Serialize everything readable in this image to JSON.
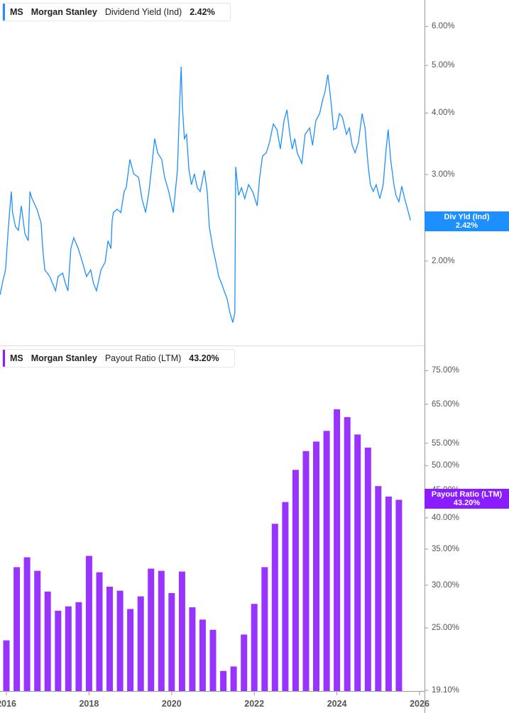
{
  "colors": {
    "yield_line": "#1e8fff",
    "payout_bar": "#9933ff",
    "payout_tag": "#8a1cff",
    "axis": "#999999"
  },
  "top_legend": {
    "ticker": "MS",
    "company": "Morgan Stanley",
    "metric": "Dividend Yield (Ind)",
    "value": "2.42%"
  },
  "bottom_legend": {
    "ticker": "MS",
    "company": "Morgan Stanley",
    "metric": "Payout Ratio (LTM)",
    "value": "43.20%"
  },
  "top_tag": {
    "label": "Div Yld (Ind)",
    "value": "2.42%"
  },
  "bottom_tag": {
    "label": "Payout Ratio (LTM)",
    "value": "43.20%"
  },
  "x_ticks": [
    "2016",
    "2018",
    "2020",
    "2022",
    "2024",
    "2026"
  ],
  "chart_data": [
    {
      "type": "line",
      "series": [
        {
          "name": "Dividend Yield (Ind)",
          "points": [
            [
              2015.85,
              1.71
            ],
            [
              2015.9,
              1.8
            ],
            [
              2015.98,
              1.92
            ],
            [
              2016.05,
              2.35
            ],
            [
              2016.09,
              2.59
            ],
            [
              2016.12,
              2.77
            ],
            [
              2016.15,
              2.51
            ],
            [
              2016.22,
              2.35
            ],
            [
              2016.29,
              2.31
            ],
            [
              2016.36,
              2.59
            ],
            [
              2016.45,
              2.27
            ],
            [
              2016.53,
              2.2
            ],
            [
              2016.57,
              2.77
            ],
            [
              2016.62,
              2.68
            ],
            [
              2016.74,
              2.55
            ],
            [
              2016.84,
              2.39
            ],
            [
              2016.88,
              2.12
            ],
            [
              2016.93,
              1.92
            ],
            [
              2017.05,
              1.86
            ],
            [
              2017.19,
              1.74
            ],
            [
              2017.25,
              1.86
            ],
            [
              2017.36,
              1.89
            ],
            [
              2017.43,
              1.8
            ],
            [
              2017.49,
              1.74
            ],
            [
              2017.56,
              2.12
            ],
            [
              2017.63,
              2.23
            ],
            [
              2017.74,
              2.12
            ],
            [
              2017.84,
              1.99
            ],
            [
              2017.94,
              1.86
            ],
            [
              2018.04,
              1.92
            ],
            [
              2018.11,
              1.8
            ],
            [
              2018.18,
              1.74
            ],
            [
              2018.29,
              1.92
            ],
            [
              2018.39,
              1.99
            ],
            [
              2018.46,
              2.2
            ],
            [
              2018.53,
              2.12
            ],
            [
              2018.56,
              2.42
            ],
            [
              2018.59,
              2.51
            ],
            [
              2018.68,
              2.55
            ],
            [
              2018.77,
              2.51
            ],
            [
              2018.85,
              2.77
            ],
            [
              2018.9,
              2.82
            ],
            [
              2018.99,
              3.22
            ],
            [
              2019.08,
              3.01
            ],
            [
              2019.2,
              2.96
            ],
            [
              2019.28,
              2.68
            ],
            [
              2019.37,
              2.51
            ],
            [
              2019.45,
              2.77
            ],
            [
              2019.52,
              3.13
            ],
            [
              2019.59,
              3.55
            ],
            [
              2019.66,
              3.32
            ],
            [
              2019.76,
              3.22
            ],
            [
              2019.83,
              2.96
            ],
            [
              2019.93,
              2.77
            ],
            [
              2020.04,
              2.51
            ],
            [
              2020.09,
              2.77
            ],
            [
              2020.14,
              3.06
            ],
            [
              2020.19,
              4.12
            ],
            [
              2020.23,
              4.97
            ],
            [
              2020.26,
              4.12
            ],
            [
              2020.31,
              3.55
            ],
            [
              2020.36,
              3.62
            ],
            [
              2020.42,
              3.06
            ],
            [
              2020.48,
              2.86
            ],
            [
              2020.55,
              3.01
            ],
            [
              2020.62,
              2.82
            ],
            [
              2020.69,
              2.77
            ],
            [
              2020.74,
              2.91
            ],
            [
              2020.79,
              3.06
            ],
            [
              2020.86,
              2.77
            ],
            [
              2020.91,
              2.35
            ],
            [
              2021.0,
              2.12
            ],
            [
              2021.07,
              1.99
            ],
            [
              2021.14,
              1.86
            ],
            [
              2021.21,
              1.8
            ],
            [
              2021.27,
              1.74
            ],
            [
              2021.34,
              1.68
            ],
            [
              2021.41,
              1.57
            ],
            [
              2021.48,
              1.5
            ],
            [
              2021.53,
              1.57
            ],
            [
              2021.55,
              3.11
            ],
            [
              2021.62,
              2.72
            ],
            [
              2021.69,
              2.82
            ],
            [
              2021.77,
              2.68
            ],
            [
              2021.86,
              2.86
            ],
            [
              2021.96,
              2.77
            ],
            [
              2022.07,
              2.59
            ],
            [
              2022.13,
              2.96
            ],
            [
              2022.2,
              3.27
            ],
            [
              2022.29,
              3.32
            ],
            [
              2022.37,
              3.49
            ],
            [
              2022.46,
              3.8
            ],
            [
              2022.55,
              3.7
            ],
            [
              2022.63,
              3.38
            ],
            [
              2022.72,
              3.86
            ],
            [
              2022.79,
              4.06
            ],
            [
              2022.86,
              3.62
            ],
            [
              2022.92,
              3.38
            ],
            [
              2022.98,
              3.55
            ],
            [
              2023.04,
              3.32
            ],
            [
              2023.15,
              3.16
            ],
            [
              2023.23,
              3.62
            ],
            [
              2023.34,
              3.73
            ],
            [
              2023.41,
              3.44
            ],
            [
              2023.49,
              3.86
            ],
            [
              2023.58,
              3.99
            ],
            [
              2023.66,
              4.27
            ],
            [
              2023.71,
              4.41
            ],
            [
              2023.78,
              4.79
            ],
            [
              2023.85,
              4.27
            ],
            [
              2023.92,
              3.7
            ],
            [
              2023.99,
              3.73
            ],
            [
              2024.06,
              3.99
            ],
            [
              2024.13,
              3.93
            ],
            [
              2024.23,
              3.62
            ],
            [
              2024.3,
              3.73
            ],
            [
              2024.37,
              3.44
            ],
            [
              2024.44,
              3.32
            ],
            [
              2024.52,
              3.49
            ],
            [
              2024.61,
              3.99
            ],
            [
              2024.68,
              3.73
            ],
            [
              2024.75,
              3.16
            ],
            [
              2024.81,
              2.86
            ],
            [
              2024.88,
              2.77
            ],
            [
              2024.95,
              2.86
            ],
            [
              2025.04,
              2.68
            ],
            [
              2025.12,
              2.86
            ],
            [
              2025.19,
              3.38
            ],
            [
              2025.24,
              3.7
            ],
            [
              2025.3,
              3.22
            ],
            [
              2025.38,
              2.86
            ],
            [
              2025.43,
              2.72
            ],
            [
              2025.5,
              2.64
            ],
            [
              2025.57,
              2.84
            ],
            [
              2025.64,
              2.68
            ],
            [
              2025.71,
              2.55
            ],
            [
              2025.78,
              2.42
            ]
          ]
        }
      ],
      "y_scale": "log",
      "y_ticks": [
        "6.00%",
        "5.00%",
        "4.00%",
        "3.00%",
        "2.00%"
      ],
      "y_tick_values": [
        6,
        5,
        4,
        3,
        2
      ],
      "x_range": [
        2015.85,
        2026.2
      ],
      "legend": "top-left"
    },
    {
      "type": "bar",
      "series": [
        {
          "name": "Payout Ratio (LTM)",
          "x": [
            2016.0,
            2016.25,
            2016.5,
            2016.75,
            2017.0,
            2017.25,
            2017.5,
            2017.75,
            2018.0,
            2018.25,
            2018.5,
            2018.75,
            2019.0,
            2019.25,
            2019.5,
            2019.75,
            2020.0,
            2020.25,
            2020.5,
            2020.75,
            2021.0,
            2021.25,
            2021.5,
            2021.75,
            2022.0,
            2022.25,
            2022.5,
            2022.75,
            2023.0,
            2023.25,
            2023.5,
            2023.75,
            2024.0,
            2024.25,
            2024.5,
            2024.75,
            2025.0,
            2025.25,
            2025.5
          ],
          "values": [
            23.7,
            32.4,
            33.8,
            31.9,
            29.2,
            26.9,
            27.4,
            27.9,
            34.0,
            31.7,
            29.8,
            29.3,
            27.1,
            28.6,
            32.2,
            31.9,
            29.0,
            31.8,
            27.3,
            25.9,
            24.8,
            20.8,
            21.2,
            24.3,
            27.7,
            32.4,
            39.0,
            42.8,
            49.1,
            53.2,
            55.4,
            58.0,
            63.6,
            61.5,
            57.1,
            54.0,
            45.8,
            43.8,
            43.2
          ]
        }
      ],
      "y_scale": "log",
      "y_ticks": [
        "75.00%",
        "65.00%",
        "55.00%",
        "50.00%",
        "45.00%",
        "40.00%",
        "35.00%",
        "30.00%",
        "25.00%",
        "19.10%"
      ],
      "y_tick_values": [
        75,
        65,
        55,
        50,
        45,
        40,
        35,
        30,
        25,
        19.1
      ],
      "x_range": [
        2015.85,
        2026.2
      ],
      "legend": "top-left"
    }
  ]
}
